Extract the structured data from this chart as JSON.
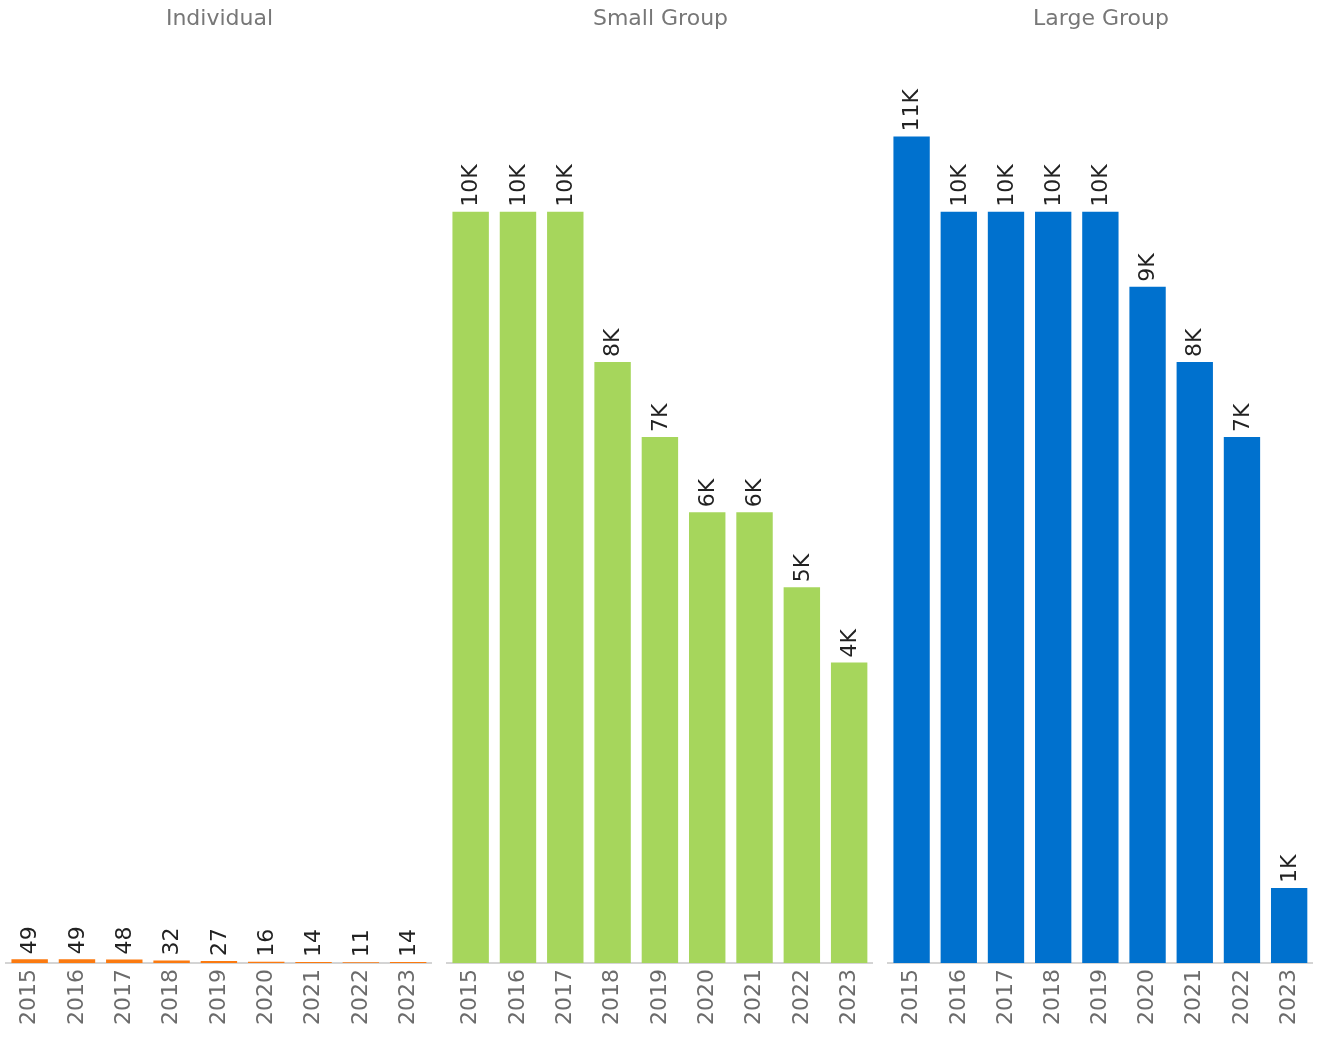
{
  "chart_data": [
    {
      "type": "bar",
      "title": "Individual",
      "categories": [
        "2015",
        "2016",
        "2017",
        "2018",
        "2019",
        "2020",
        "2021",
        "2022",
        "2023"
      ],
      "values": [
        49,
        49,
        48,
        32,
        27,
        16,
        14,
        11,
        14
      ],
      "value_labels": [
        "49",
        "49",
        "48",
        "32",
        "27",
        "16",
        "14",
        "11",
        "14"
      ],
      "color": "#fb7a10",
      "tick_labels": "x"
    },
    {
      "type": "bar",
      "title": "Small Group",
      "categories": [
        "2015",
        "2016",
        "2017",
        "2018",
        "2019",
        "2020",
        "2021",
        "2022",
        "2023"
      ],
      "values": [
        10000,
        10000,
        10000,
        8000,
        7000,
        6000,
        6000,
        5000,
        4000
      ],
      "value_labels": [
        "10K",
        "10K",
        "10K",
        "8K",
        "7K",
        "6K",
        "6K",
        "5K",
        "4K"
      ],
      "color": "#a6d65c",
      "tick_labels": "x"
    },
    {
      "type": "bar",
      "title": "Large Group",
      "categories": [
        "2015",
        "2016",
        "2017",
        "2018",
        "2019",
        "2020",
        "2021",
        "2022",
        "2023"
      ],
      "values": [
        11000,
        10000,
        10000,
        10000,
        10000,
        9000,
        8000,
        7000,
        1000
      ],
      "value_labels": [
        "11K",
        "10K",
        "10K",
        "10K",
        "10K",
        "9K",
        "8K",
        "7K",
        "1K"
      ],
      "color": "#0071ce",
      "tick_labels": "x"
    }
  ]
}
